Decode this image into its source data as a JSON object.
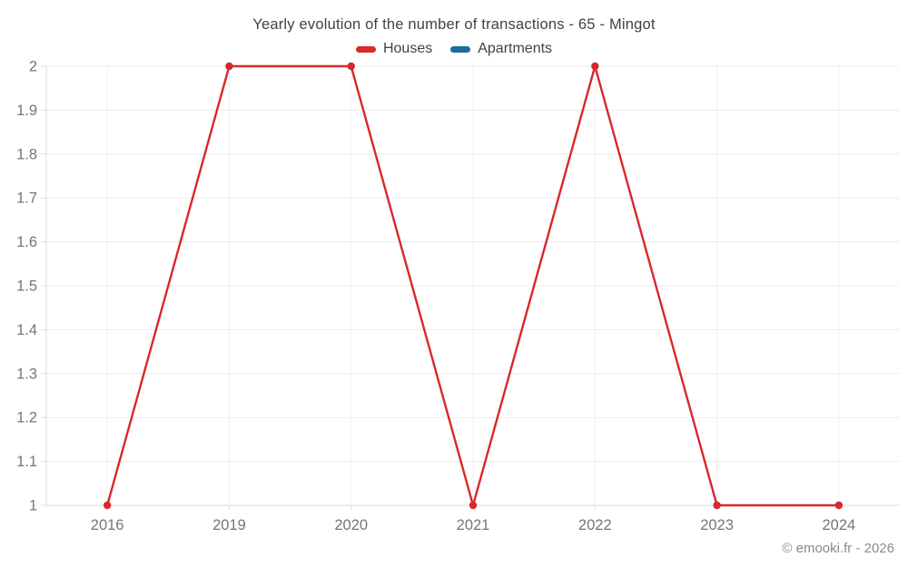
{
  "chart": {
    "title": "Yearly evolution of the number of transactions - 65 - Mingot",
    "copyright": "© emooki.fr - 2026"
  },
  "chart_data": {
    "type": "line",
    "title": "Yearly evolution of the number of transactions - 65 - Mingot",
    "categories": [
      "2016",
      "2019",
      "2020",
      "2021",
      "2022",
      "2023",
      "2024"
    ],
    "series": [
      {
        "name": "Houses",
        "color": "#d7282c",
        "marker": "circle",
        "values": [
          1,
          2,
          2,
          1,
          2,
          1,
          1
        ]
      },
      {
        "name": "Apartments",
        "color": "#1a6d9e",
        "marker": "circle",
        "values": []
      }
    ],
    "xlabel": "",
    "ylabel": "",
    "ylim": [
      1,
      2
    ],
    "yticks": [
      1,
      1.1,
      1.2,
      1.3,
      1.4,
      1.5,
      1.6,
      1.7,
      1.8,
      1.9,
      2
    ],
    "grid": true,
    "legend_position": "top",
    "colors": {
      "axis_line": "#dcdcdc",
      "grid_line": "#ececec",
      "vertical_grid_line": "#f0f0f0",
      "tick_label": "#757575",
      "title_text": "#424242"
    }
  }
}
